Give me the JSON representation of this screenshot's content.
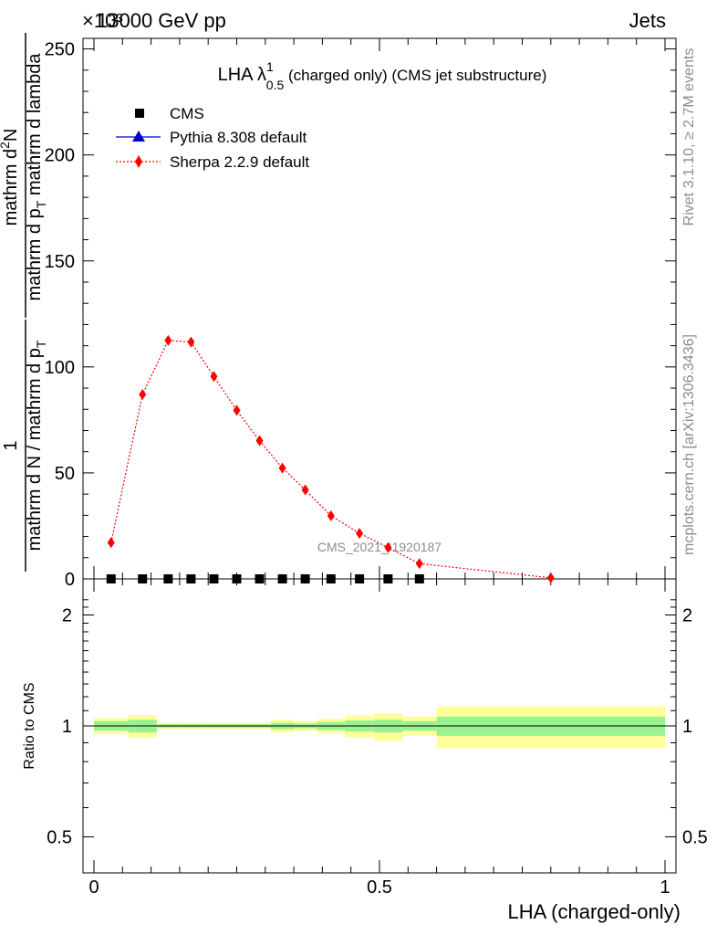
{
  "header": {
    "exponent_label": "×10³",
    "energy_label": "13000 GeV pp",
    "process_label": "Jets"
  },
  "side_labels": {
    "rivet": "Rivet 3.1.10, ≥ 2.7M events",
    "mcplots": "mcplots.cern.ch [arXiv:1306.3436]"
  },
  "watermark": "CMS_2021_I1920187",
  "chart_data": [
    {
      "type": "scatter",
      "title_main": "LHA λ",
      "title_sup": "1",
      "title_sub": "0.5",
      "title_rest": " (charged only) (CMS jet substructure)",
      "ylabel_fraction_numerator": "1",
      "ylabel_main": "mathrm d N / mathrm d p",
      "ylabel_main_sub": "T",
      "ylabel_num": "mathrm d",
      "ylabel_num_sup": "2",
      "ylabel_num_rest": "N",
      "ylabel_den": "mathrm d p",
      "ylabel_den_sub": "T",
      "ylabel_den_rest": " mathrm d lambda",
      "xlim": [
        0,
        1
      ],
      "ylim": [
        0,
        255
      ],
      "y_ticks": [
        0,
        50,
        100,
        150,
        200,
        250
      ],
      "y_tick_labels": [
        "0",
        "50",
        "100",
        "150",
        "200",
        "250"
      ],
      "legend": [
        {
          "label": "CMS",
          "marker": "square",
          "color": "#000000"
        },
        {
          "label": "Pythia 8.308 default",
          "marker": "triangle",
          "color": "#0000cc"
        },
        {
          "label": "Sherpa 2.2.9 default",
          "marker": "diamond",
          "color": "#ff0000"
        }
      ],
      "series": [
        {
          "name": "CMS",
          "x": [
            0.03,
            0.085,
            0.13,
            0.17,
            0.21,
            0.25,
            0.29,
            0.33,
            0.37,
            0.415,
            0.465,
            0.515,
            0.57
          ],
          "values": [
            0,
            0,
            0,
            0,
            0,
            0,
            0,
            0,
            0,
            0,
            0,
            0,
            0
          ]
        },
        {
          "name": "Sherpa 2.2.9 default",
          "x": [
            0.03,
            0.085,
            0.13,
            0.17,
            0.21,
            0.25,
            0.29,
            0.33,
            0.37,
            0.415,
            0.465,
            0.515,
            0.57,
            0.8
          ],
          "values": [
            17.1,
            87.0,
            112.5,
            111.7,
            95.5,
            79.5,
            65.2,
            52.3,
            42.0,
            29.8,
            21.5,
            14.8,
            7.2,
            0.5
          ]
        }
      ]
    },
    {
      "type": "line",
      "ylabel": "Ratio to CMS",
      "xlabel": "LHA (charged-only)",
      "xlim": [
        0,
        1
      ],
      "ylim": [
        0.4,
        2.3
      ],
      "y_ticks": [
        0.5,
        1,
        2
      ],
      "y_tick_labels": [
        "0.5",
        "1",
        "2"
      ],
      "x_ticks": [
        0,
        0.5,
        1
      ],
      "x_tick_labels": [
        "0",
        "0.5",
        "1"
      ],
      "reference": 1,
      "bands": [
        {
          "x0": 0.0,
          "x1": 0.06,
          "inner": [
            0.97,
            1.03
          ],
          "outer": [
            0.95,
            1.05
          ]
        },
        {
          "x0": 0.06,
          "x1": 0.11,
          "inner": [
            0.96,
            1.04
          ],
          "outer": [
            0.93,
            1.07
          ]
        },
        {
          "x0": 0.11,
          "x1": 0.15,
          "inner": [
            0.99,
            1.01
          ],
          "outer": [
            0.98,
            1.02
          ]
        },
        {
          "x0": 0.15,
          "x1": 0.19,
          "inner": [
            0.99,
            1.01
          ],
          "outer": [
            0.98,
            1.02
          ]
        },
        {
          "x0": 0.19,
          "x1": 0.23,
          "inner": [
            0.99,
            1.01
          ],
          "outer": [
            0.98,
            1.02
          ]
        },
        {
          "x0": 0.23,
          "x1": 0.27,
          "inner": [
            0.99,
            1.01
          ],
          "outer": [
            0.98,
            1.02
          ]
        },
        {
          "x0": 0.27,
          "x1": 0.31,
          "inner": [
            0.99,
            1.01
          ],
          "outer": [
            0.98,
            1.02
          ]
        },
        {
          "x0": 0.31,
          "x1": 0.35,
          "inner": [
            0.98,
            1.02
          ],
          "outer": [
            0.96,
            1.04
          ]
        },
        {
          "x0": 0.35,
          "x1": 0.39,
          "inner": [
            0.985,
            1.015
          ],
          "outer": [
            0.97,
            1.03
          ]
        },
        {
          "x0": 0.39,
          "x1": 0.44,
          "inner": [
            0.975,
            1.025
          ],
          "outer": [
            0.955,
            1.045
          ]
        },
        {
          "x0": 0.44,
          "x1": 0.49,
          "inner": [
            0.965,
            1.035
          ],
          "outer": [
            0.93,
            1.07
          ]
        },
        {
          "x0": 0.49,
          "x1": 0.54,
          "inner": [
            0.96,
            1.04
          ],
          "outer": [
            0.91,
            1.08
          ]
        },
        {
          "x0": 0.54,
          "x1": 0.6,
          "inner": [
            0.97,
            1.03
          ],
          "outer": [
            0.94,
            1.06
          ]
        },
        {
          "x0": 0.6,
          "x1": 1.0,
          "inner": [
            0.94,
            1.06
          ],
          "outer": [
            0.87,
            1.13
          ]
        }
      ],
      "band_colors": {
        "inner": "#99f290",
        "outer": "#ffff99"
      }
    }
  ]
}
